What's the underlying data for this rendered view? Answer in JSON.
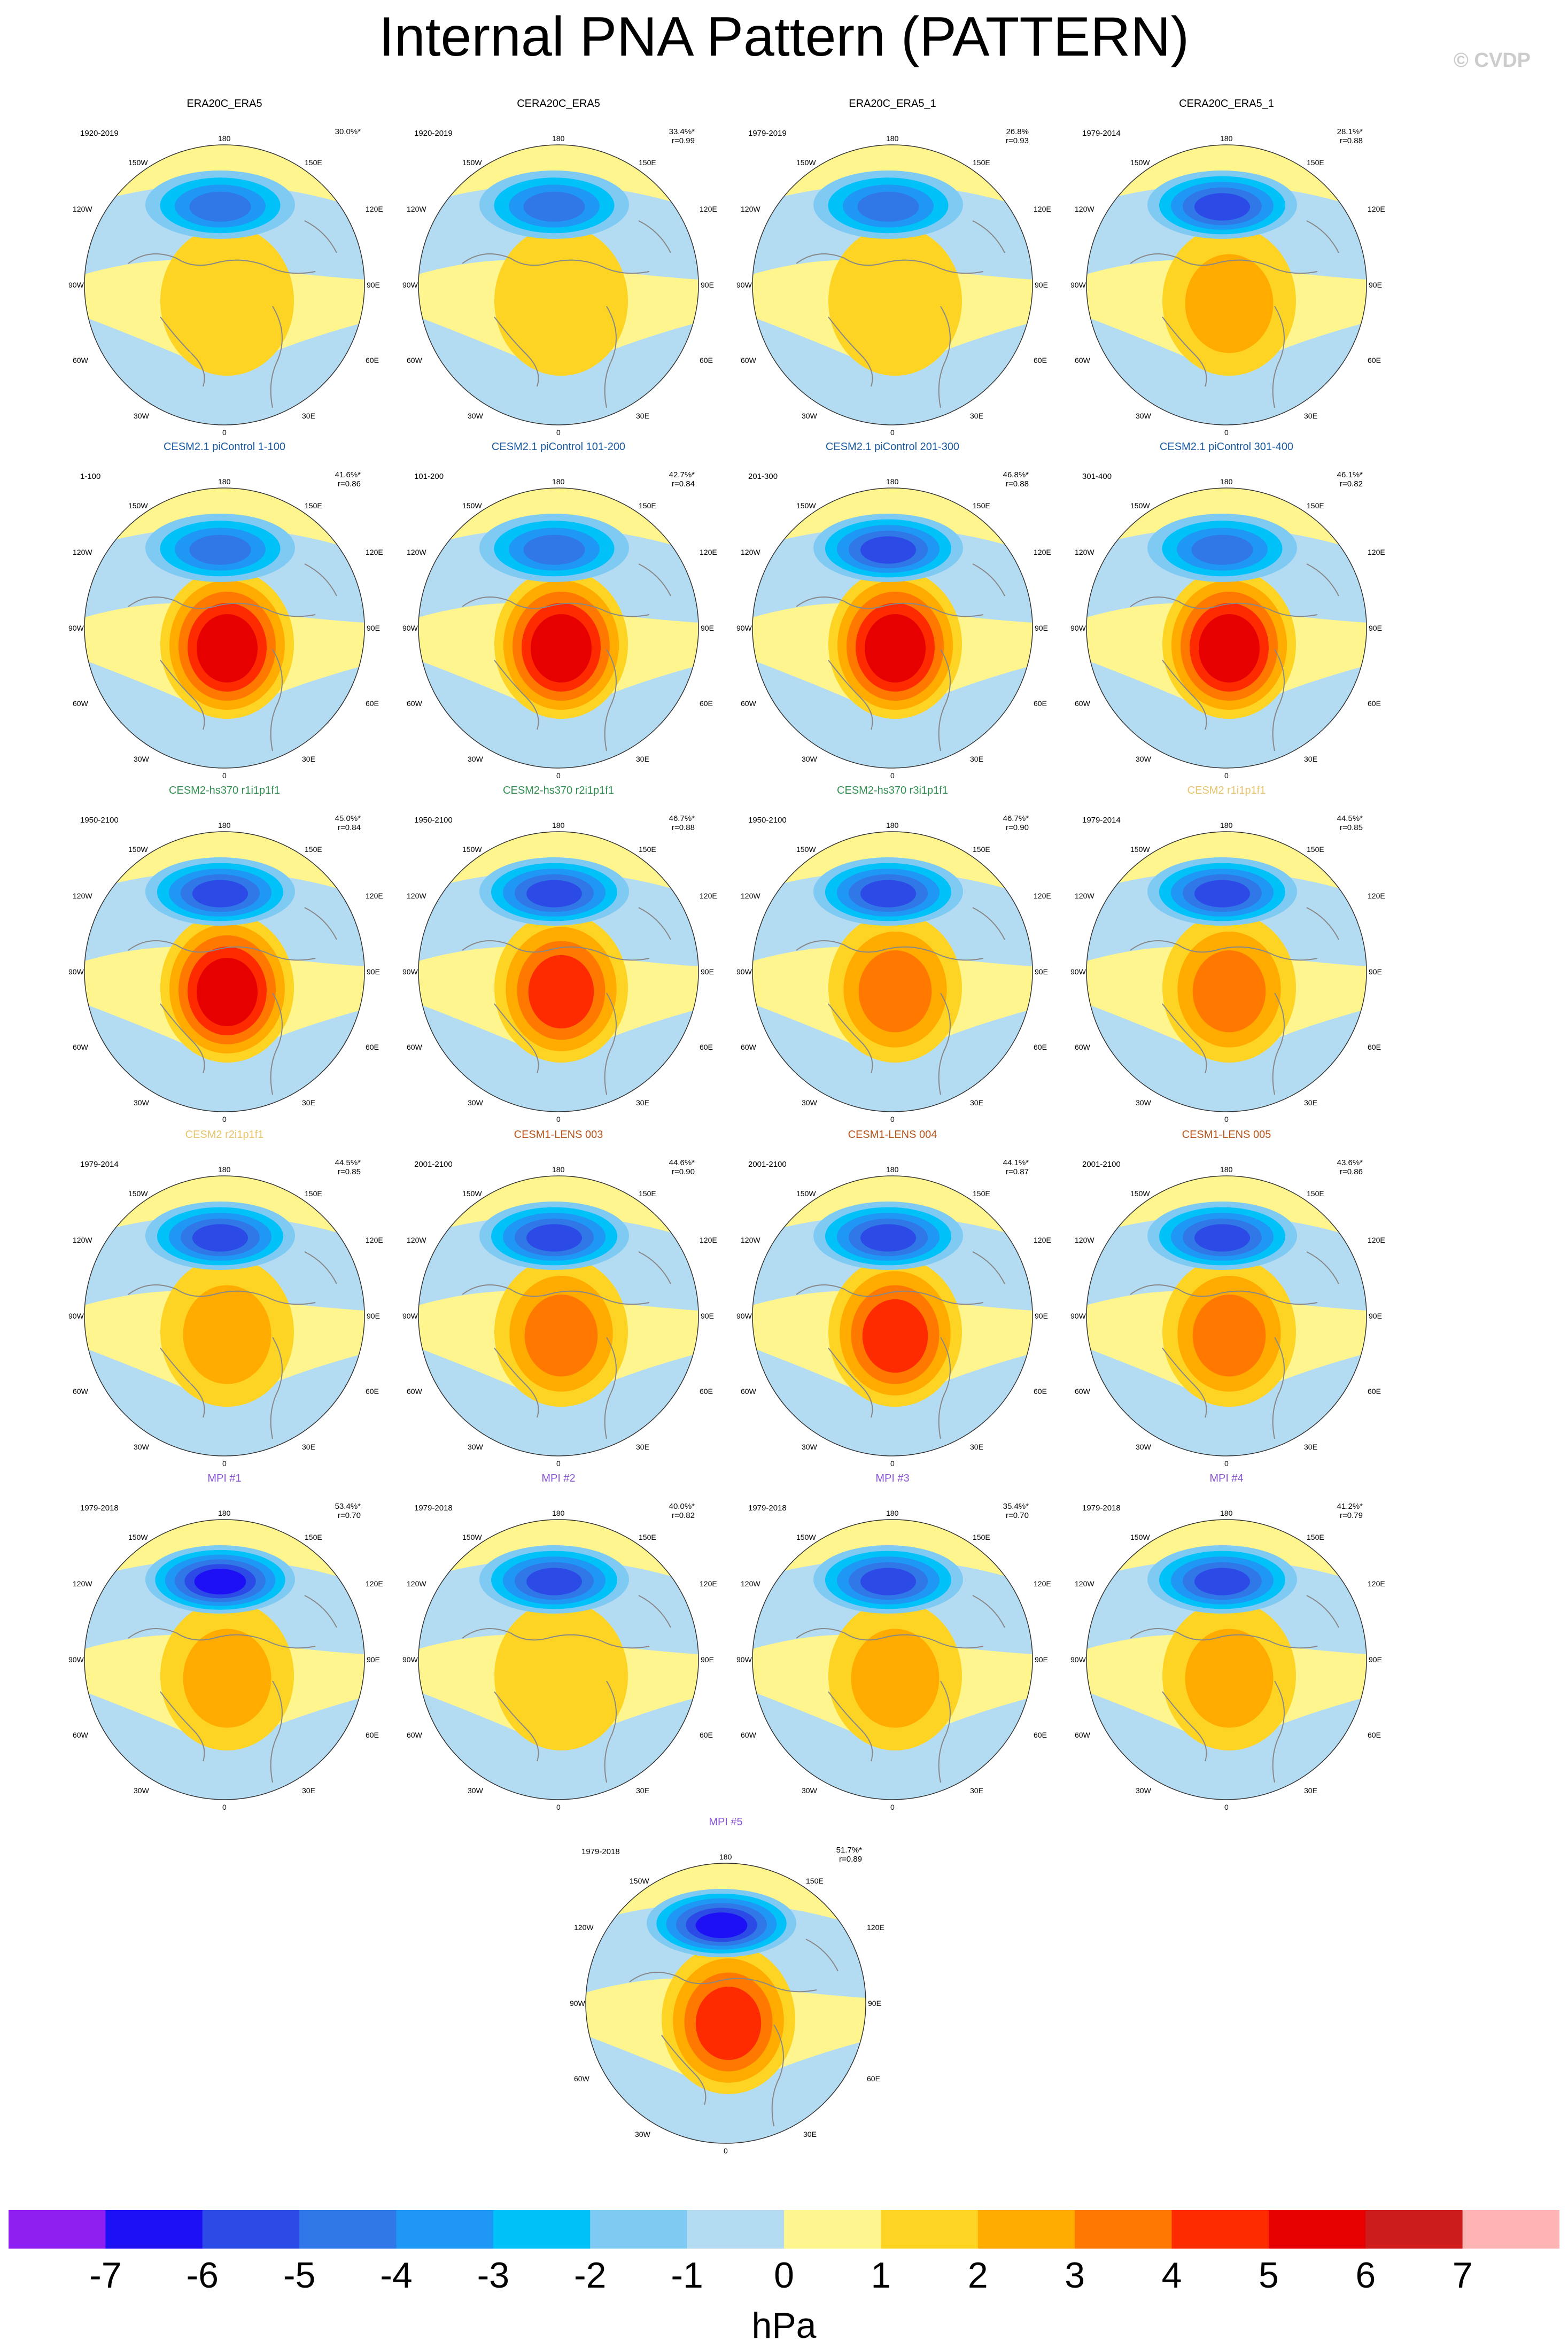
{
  "title": "Internal PNA Pattern (PATTERN)",
  "copyright": "© CVDP",
  "colors": {
    "scale": [
      "#8f1ef1",
      "#1e10f5",
      "#2c4ae6",
      "#3077e8",
      "#1f97f5",
      "#00c1f8",
      "#7fcaf3",
      "#b3dcf3",
      "#fff58e",
      "#fed424",
      "#ffab00",
      "#ff7900",
      "#ff2b00",
      "#e70000",
      "#cd1c1c",
      "#ffb4b4"
    ],
    "land": "#888888",
    "title_obs": "#000000",
    "title_pic": "#1a5aa0",
    "title_hs": "#2f8f4f",
    "title_cesm2": "#e8c36a",
    "title_lens": "#b5541b",
    "title_mpi": "#8a56d6"
  },
  "colorbar": {
    "ticks": [
      "-7",
      "-6",
      "-5",
      "-4",
      "-3",
      "-2",
      "-1",
      "0",
      "1",
      "2",
      "3",
      "4",
      "5",
      "6",
      "7"
    ],
    "units": "hPa"
  },
  "chart_data": {
    "type": "heatmap",
    "projection": "north polar stereographic",
    "variable": "PNA sea level pressure pattern",
    "units": "hPa",
    "contour_levels": [
      -7,
      -6,
      -5,
      -4,
      -3,
      -2,
      -1,
      0,
      1,
      2,
      3,
      4,
      5,
      6,
      7
    ],
    "map_labels": {
      "top": "180",
      "upper_left": "150W",
      "upper_right": "150E",
      "mid_left_upper": "120W",
      "mid_right_upper": "120E",
      "left": "90W",
      "right": "90E",
      "lower_left_mid": "60W",
      "lower_right_mid": "60E",
      "lower_left": "30W",
      "lower_right": "30E",
      "bottom": "0"
    },
    "panels": [
      {
        "title": "ERA20C_ERA5",
        "title_color": "#000000",
        "period": "1920-2019",
        "pct": "30.0%*",
        "r": "",
        "low_peak": -4,
        "high_peak": 1
      },
      {
        "title": "CERA20C_ERA5",
        "title_color": "#000000",
        "period": "1920-2019",
        "pct": "33.4%*",
        "r": "r=0.99",
        "low_peak": -4,
        "high_peak": 1
      },
      {
        "title": "ERA20C_ERA5_1",
        "title_color": "#000000",
        "period": "1979-2019",
        "pct": "26.8%",
        "r": "r=0.93",
        "low_peak": -4,
        "high_peak": 1
      },
      {
        "title": "CERA20C_ERA5_1",
        "title_color": "#000000",
        "period": "1979-2014",
        "pct": "28.1%*",
        "r": "r=0.88",
        "low_peak": -5,
        "high_peak": 2
      },
      {
        "title": "CESM2.1 piControl 1-100",
        "title_color": "#1a5aa0",
        "period": "1-100",
        "pct": "41.6%*",
        "r": "r=0.86",
        "low_peak": -4,
        "high_peak": 5
      },
      {
        "title": "CESM2.1 piControl 101-200",
        "title_color": "#1a5aa0",
        "period": "101-200",
        "pct": "42.7%*",
        "r": "r=0.84",
        "low_peak": -4,
        "high_peak": 5
      },
      {
        "title": "CESM2.1 piControl 201-300",
        "title_color": "#1a5aa0",
        "period": "201-300",
        "pct": "46.8%*",
        "r": "r=0.88",
        "low_peak": -5,
        "high_peak": 5
      },
      {
        "title": "CESM2.1 piControl 301-400",
        "title_color": "#1a5aa0",
        "period": "301-400",
        "pct": "46.1%*",
        "r": "r=0.82",
        "low_peak": -4,
        "high_peak": 5
      },
      {
        "title": "CESM2-hs370 r1i1p1f1",
        "title_color": "#2f8f4f",
        "period": "1950-2100",
        "pct": "45.0%*",
        "r": "r=0.84",
        "low_peak": -5,
        "high_peak": 5
      },
      {
        "title": "CESM2-hs370 r2i1p1f1",
        "title_color": "#2f8f4f",
        "period": "1950-2100",
        "pct": "46.7%*",
        "r": "r=0.88",
        "low_peak": -5,
        "high_peak": 4
      },
      {
        "title": "CESM2-hs370 r3i1p1f1",
        "title_color": "#2f8f4f",
        "period": "1950-2100",
        "pct": "46.7%*",
        "r": "r=0.90",
        "low_peak": -5,
        "high_peak": 3
      },
      {
        "title": "CESM2 r1i1p1f1",
        "title_color": "#e8c36a",
        "period": "1979-2014",
        "pct": "44.5%*",
        "r": "r=0.85",
        "low_peak": -5,
        "high_peak": 3
      },
      {
        "title": "CESM2 r2i1p1f1",
        "title_color": "#e8c36a",
        "period": "1979-2014",
        "pct": "44.5%*",
        "r": "r=0.85",
        "low_peak": -5,
        "high_peak": 2
      },
      {
        "title": "CESM1-LENS 003",
        "title_color": "#b5541b",
        "period": "2001-2100",
        "pct": "44.6%*",
        "r": "r=0.90",
        "low_peak": -5,
        "high_peak": 3
      },
      {
        "title": "CESM1-LENS 004",
        "title_color": "#b5541b",
        "period": "2001-2100",
        "pct": "44.1%*",
        "r": "r=0.87",
        "low_peak": -5,
        "high_peak": 4
      },
      {
        "title": "CESM1-LENS 005",
        "title_color": "#b5541b",
        "period": "2001-2100",
        "pct": "43.6%*",
        "r": "r=0.86",
        "low_peak": -5,
        "high_peak": 3
      },
      {
        "title": "MPI #1",
        "title_color": "#8a56d6",
        "period": "1979-2018",
        "pct": "53.4%*",
        "r": "r=0.70",
        "low_peak": -6,
        "high_peak": 2
      },
      {
        "title": "MPI #2",
        "title_color": "#8a56d6",
        "period": "1979-2018",
        "pct": "40.0%*",
        "r": "r=0.82",
        "low_peak": -5,
        "high_peak": 1
      },
      {
        "title": "MPI #3",
        "title_color": "#8a56d6",
        "period": "1979-2018",
        "pct": "35.4%*",
        "r": "r=0.70",
        "low_peak": -5,
        "high_peak": 2
      },
      {
        "title": "MPI #4",
        "title_color": "#8a56d6",
        "period": "1979-2018",
        "pct": "41.2%*",
        "r": "r=0.79",
        "low_peak": -5,
        "high_peak": 2
      },
      {
        "title": "MPI #5",
        "title_color": "#8a56d6",
        "period": "1979-2018",
        "pct": "51.7%*",
        "r": "r=0.89",
        "low_peak": -6,
        "high_peak": 4
      }
    ]
  }
}
